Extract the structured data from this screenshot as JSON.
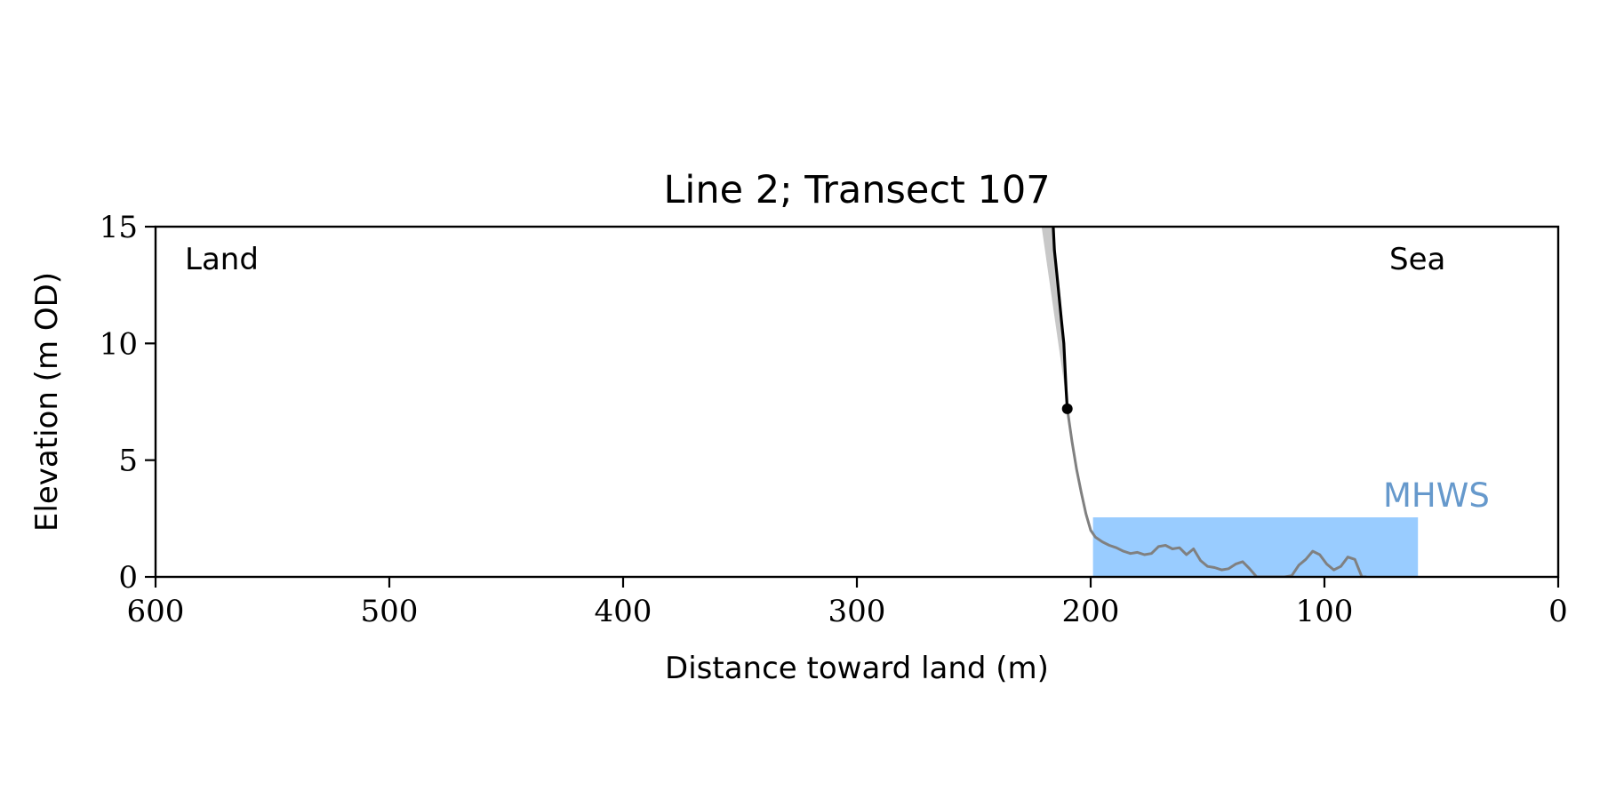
{
  "chart_data": {
    "type": "line",
    "title": "Line 2; Transect 107",
    "xlabel": "Distance toward land (m)",
    "ylabel": "Elevation (m OD)",
    "xlim": [
      600,
      0
    ],
    "ylim": [
      0,
      15
    ],
    "x_ticks": [
      600,
      500,
      400,
      300,
      200,
      100,
      0
    ],
    "x_tick_labels": [
      "600",
      "500",
      "400",
      "300",
      "200",
      "100",
      "0"
    ],
    "y_ticks": [
      0,
      5,
      10,
      15
    ],
    "y_tick_labels": [
      "0",
      "5",
      "10",
      "15"
    ],
    "grid": false,
    "annotations": {
      "land": "Land",
      "sea": "Sea",
      "mhws": "MHWS"
    },
    "colors": {
      "axes": "#000000",
      "cliff_line": "#000000",
      "cliff_shade": "#c8c8c8",
      "profile_line": "#808080",
      "mhws_fill": "#99ccff",
      "mhws_text": "#6699cc"
    },
    "mhws": {
      "x_start": 199,
      "x_end": 60,
      "elevation": 2.55
    },
    "cliff_top_point": {
      "x": 210,
      "y": 7.2
    },
    "cliff_upper_line": {
      "x": [
        216,
        215.5,
        214.5,
        213.5,
        212.5,
        211.5,
        210.5,
        210
      ],
      "y": [
        15,
        14,
        13,
        12,
        11,
        10,
        8,
        7.2
      ]
    },
    "cliff_shade": {
      "x": [
        221,
        216,
        215.5,
        214.5,
        213.5,
        212.5,
        211.5,
        210.5,
        210,
        211
      ],
      "y": [
        15,
        15,
        14,
        13,
        12,
        11,
        10,
        8,
        7.2,
        8
      ]
    },
    "profile": {
      "x": [
        210,
        208,
        206,
        204,
        202,
        200,
        198,
        195,
        192,
        189,
        186,
        183,
        180,
        177,
        174,
        171,
        168,
        165,
        162,
        159,
        156,
        153,
        150,
        147,
        144,
        141,
        138,
        135,
        132,
        129,
        126,
        123,
        120,
        117,
        114,
        111,
        108,
        105,
        102,
        99,
        96,
        93,
        90,
        87,
        84,
        82
      ],
      "y": [
        7.2,
        5.8,
        4.6,
        3.6,
        2.7,
        2.0,
        1.7,
        1.5,
        1.35,
        1.25,
        1.1,
        1.0,
        1.05,
        0.95,
        1.0,
        1.3,
        1.35,
        1.2,
        1.25,
        0.95,
        1.2,
        0.7,
        0.45,
        0.4,
        0.3,
        0.35,
        0.55,
        0.65,
        0.35,
        0.0,
        0.0,
        0.0,
        0.0,
        0.0,
        0.05,
        0.5,
        0.75,
        1.1,
        0.95,
        0.55,
        0.3,
        0.45,
        0.85,
        0.75,
        0.0,
        0.0
      ]
    }
  }
}
